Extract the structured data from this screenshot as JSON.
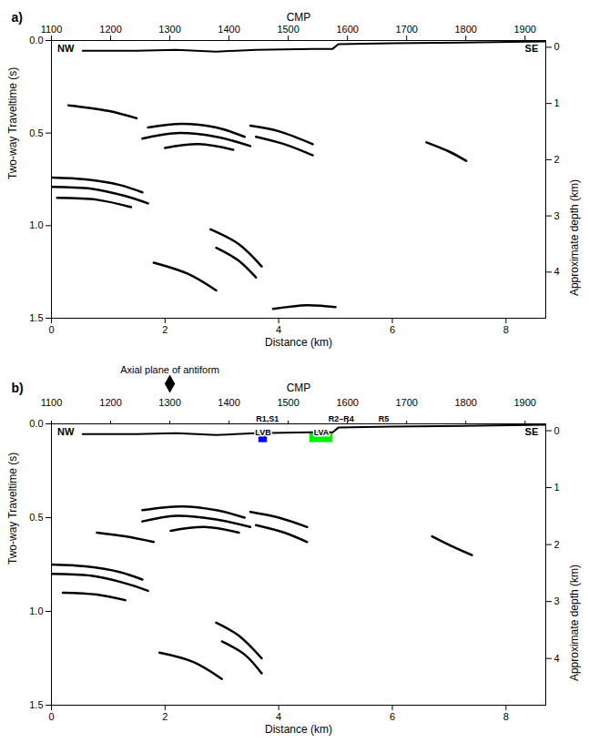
{
  "chart_data": [
    {
      "type": "line",
      "panel": "a)",
      "x_label": "Distance (km)",
      "y_label": "Two-way Traveltime (s)",
      "x2_label": "CMP",
      "y2_label": "Approximate depth (km)",
      "xlim": [
        0,
        8.7
      ],
      "xticks": [
        0,
        2,
        4,
        6,
        8
      ],
      "ylim": [
        0,
        1.5
      ],
      "yticks": [
        {
          "value": 0,
          "label": "0.0"
        },
        0.5,
        {
          "value": 1,
          "label": "1.0"
        },
        1.5
      ],
      "cmp_lim": [
        1100,
        1935
      ],
      "cmp_ticks": [
        1100,
        1200,
        1300,
        1400,
        1500,
        1600,
        1700,
        1800,
        1900
      ],
      "depth_lim": [
        -0.12,
        4.82
      ],
      "depth_ticks": [
        0,
        1,
        2,
        3,
        4
      ],
      "color": "#000000",
      "annotations": [
        {
          "text": "NW",
          "x": 0.25,
          "t": 0.045
        },
        {
          "text": "SE",
          "x": 8.45,
          "t": 0.045
        }
      ],
      "topography": [
        [
          0.55,
          0.055
        ],
        [
          1.5,
          0.055
        ],
        [
          2.2,
          0.05
        ],
        [
          2.9,
          0.06
        ],
        [
          3.6,
          0.05
        ],
        [
          4.6,
          0.045
        ],
        [
          4.95,
          0.045
        ],
        [
          5.05,
          0.02
        ],
        [
          6.0,
          0.015
        ],
        [
          7.5,
          0.01
        ],
        [
          8.7,
          0.005
        ]
      ],
      "reflectors": [
        [
          [
            0,
            0.74
          ],
          [
            0.6,
            0.75
          ],
          [
            1.2,
            0.78
          ],
          [
            1.6,
            0.82
          ]
        ],
        [
          [
            0,
            0.79
          ],
          [
            0.7,
            0.8
          ],
          [
            1.3,
            0.84
          ],
          [
            1.7,
            0.88
          ]
        ],
        [
          [
            0.1,
            0.85
          ],
          [
            0.8,
            0.86
          ],
          [
            1.4,
            0.9
          ]
        ],
        [
          [
            0.3,
            0.35
          ],
          [
            1.0,
            0.38
          ],
          [
            1.5,
            0.42
          ]
        ],
        [
          [
            1.7,
            0.47
          ],
          [
            2.3,
            0.45
          ],
          [
            2.9,
            0.47
          ],
          [
            3.4,
            0.52
          ]
        ],
        [
          [
            1.6,
            0.53
          ],
          [
            2.2,
            0.5
          ],
          [
            2.9,
            0.52
          ],
          [
            3.5,
            0.57
          ]
        ],
        [
          [
            2.0,
            0.58
          ],
          [
            2.6,
            0.56
          ],
          [
            3.2,
            0.59
          ]
        ],
        [
          [
            3.5,
            0.46
          ],
          [
            4.0,
            0.49
          ],
          [
            4.6,
            0.56
          ]
        ],
        [
          [
            3.6,
            0.52
          ],
          [
            4.1,
            0.56
          ],
          [
            4.6,
            0.62
          ]
        ],
        [
          [
            2.8,
            1.02
          ],
          [
            3.3,
            1.1
          ],
          [
            3.7,
            1.22
          ]
        ],
        [
          [
            2.9,
            1.12
          ],
          [
            3.3,
            1.19
          ],
          [
            3.6,
            1.28
          ]
        ],
        [
          [
            1.8,
            1.2
          ],
          [
            2.4,
            1.26
          ],
          [
            2.9,
            1.35
          ]
        ],
        [
          [
            3.9,
            1.45
          ],
          [
            4.5,
            1.43
          ],
          [
            5.0,
            1.44
          ]
        ],
        [
          [
            6.6,
            0.55
          ],
          [
            7.0,
            0.6
          ],
          [
            7.3,
            0.65
          ]
        ]
      ]
    },
    {
      "type": "line",
      "panel": "b)",
      "x_label": "Distance (km)",
      "y_label": "Two-way Traveltime (s)",
      "x2_label": "CMP",
      "y2_label": "Approximate depth (km)",
      "xlim": [
        0,
        8.7
      ],
      "xticks": [
        0,
        2,
        4,
        6,
        8
      ],
      "ylim": [
        0,
        1.5
      ],
      "yticks": [
        {
          "value": 0,
          "label": "0.0"
        },
        0.5,
        {
          "value": 1,
          "label": "1.0"
        },
        1.5
      ],
      "cmp_lim": [
        1100,
        1935
      ],
      "cmp_ticks": [
        1100,
        1200,
        1300,
        1400,
        1500,
        1600,
        1700,
        1800,
        1900
      ],
      "depth_lim": [
        -0.12,
        4.82
      ],
      "depth_ticks": [
        0,
        1,
        2,
        3,
        4
      ],
      "color": "#000000",
      "axial_plane": {
        "label": "Axial plane of antiform",
        "cmp": 1300
      },
      "stations": [
        {
          "label": "R1,S1",
          "x": 3.8
        },
        {
          "label": "R2–R4",
          "x": 5.1
        },
        {
          "label": "R5",
          "x": 5.85
        }
      ],
      "zones": [
        {
          "label": "LVB",
          "color": "#0000ff",
          "x": [
            3.65,
            3.8
          ],
          "t": [
            0.05,
            0.1
          ]
        },
        {
          "label": "LVA",
          "color": "#00ee00",
          "x": [
            4.55,
            4.95
          ],
          "t": [
            0.05,
            0.1
          ]
        }
      ],
      "annotations": [
        {
          "text": "NW",
          "x": 0.25,
          "t": 0.045
        },
        {
          "text": "SE",
          "x": 8.45,
          "t": 0.045
        }
      ],
      "topography": [
        [
          0.55,
          0.055
        ],
        [
          1.5,
          0.055
        ],
        [
          2.2,
          0.05
        ],
        [
          2.9,
          0.06
        ],
        [
          3.6,
          0.05
        ],
        [
          4.6,
          0.045
        ],
        [
          4.95,
          0.045
        ],
        [
          5.05,
          0.02
        ],
        [
          6.0,
          0.015
        ],
        [
          7.5,
          0.01
        ],
        [
          8.7,
          0.005
        ]
      ],
      "reflectors": [
        [
          [
            0,
            0.75
          ],
          [
            0.6,
            0.76
          ],
          [
            1.2,
            0.79
          ],
          [
            1.6,
            0.83
          ]
        ],
        [
          [
            0,
            0.8
          ],
          [
            0.7,
            0.81
          ],
          [
            1.3,
            0.85
          ],
          [
            1.7,
            0.89
          ]
        ],
        [
          [
            0.2,
            0.9
          ],
          [
            0.8,
            0.91
          ],
          [
            1.3,
            0.94
          ]
        ],
        [
          [
            1.6,
            0.46
          ],
          [
            2.3,
            0.44
          ],
          [
            2.9,
            0.46
          ],
          [
            3.4,
            0.5
          ]
        ],
        [
          [
            1.6,
            0.52
          ],
          [
            2.2,
            0.49
          ],
          [
            2.9,
            0.51
          ],
          [
            3.5,
            0.55
          ]
        ],
        [
          [
            2.1,
            0.57
          ],
          [
            2.7,
            0.55
          ],
          [
            3.3,
            0.58
          ]
        ],
        [
          [
            3.5,
            0.47
          ],
          [
            4.0,
            0.5
          ],
          [
            4.5,
            0.55
          ]
        ],
        [
          [
            3.6,
            0.54
          ],
          [
            4.1,
            0.58
          ],
          [
            4.5,
            0.63
          ]
        ],
        [
          [
            2.9,
            1.06
          ],
          [
            3.3,
            1.13
          ],
          [
            3.7,
            1.25
          ]
        ],
        [
          [
            3.0,
            1.16
          ],
          [
            3.4,
            1.23
          ],
          [
            3.7,
            1.33
          ]
        ],
        [
          [
            1.9,
            1.22
          ],
          [
            2.5,
            1.27
          ],
          [
            3.0,
            1.36
          ]
        ],
        [
          [
            0.8,
            0.58
          ],
          [
            1.3,
            0.6
          ],
          [
            1.8,
            0.63
          ]
        ],
        [
          [
            6.7,
            0.6
          ],
          [
            7.1,
            0.66
          ],
          [
            7.4,
            0.7
          ]
        ]
      ]
    }
  ]
}
